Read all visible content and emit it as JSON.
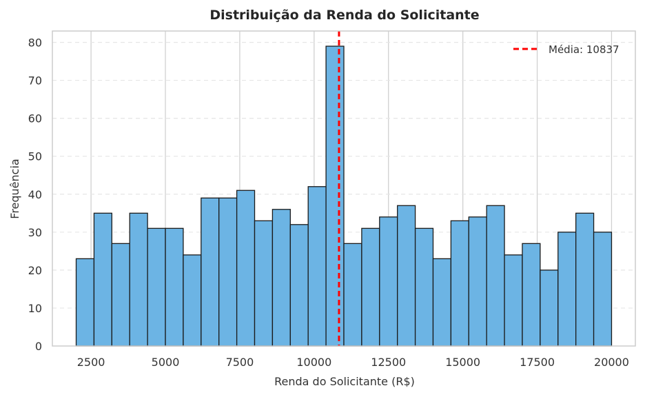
{
  "chart_data": {
    "type": "bar",
    "title": "Distribuição da Renda do Solicitante",
    "xlabel": "Renda do Solicitante (R$)",
    "ylabel": "Frequência",
    "xlim": [
      1200,
      20800
    ],
    "ylim": [
      0,
      83
    ],
    "x_ticks": [
      2500,
      5000,
      7500,
      10000,
      12500,
      15000,
      17500,
      20000
    ],
    "y_ticks": [
      0,
      10,
      20,
      30,
      40,
      50,
      60,
      70,
      80
    ],
    "bin_start": 2000,
    "bin_end": 20000,
    "values": [
      23,
      35,
      27,
      35,
      31,
      31,
      24,
      39,
      39,
      41,
      33,
      36,
      32,
      42,
      79,
      27,
      31,
      34,
      37,
      31,
      23,
      33,
      34,
      37,
      24,
      27,
      20,
      30,
      35,
      30
    ],
    "bar_color": "#6cb4e4",
    "bar_edge_color": "#1a1a1a",
    "mean_line": {
      "value": 10837,
      "color": "#ff0000",
      "label": "Média: 10837"
    },
    "legend_position": "top-right",
    "grid": {
      "x": true,
      "y": "dashed"
    }
  }
}
